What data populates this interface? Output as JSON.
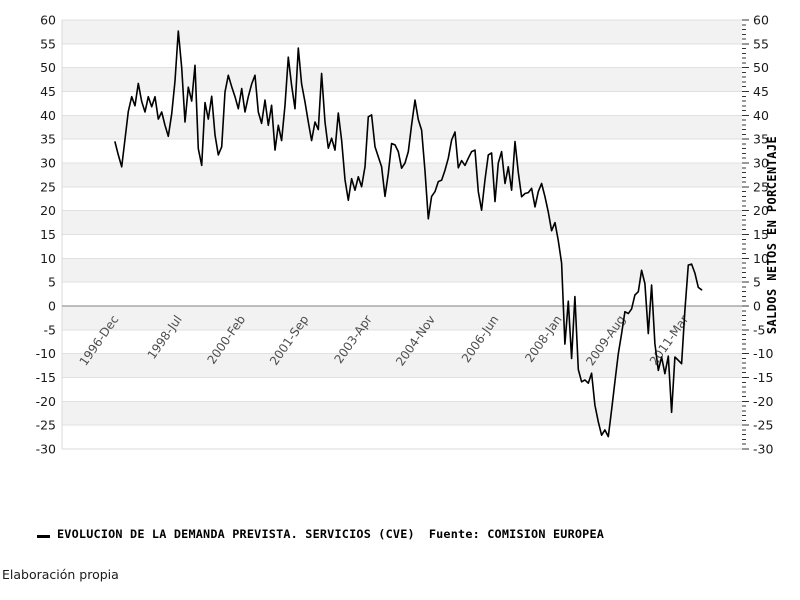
{
  "chart_data": {
    "type": "line",
    "title": "",
    "ylabel_right": "SALDOS NETOS EN PORCENTAJE",
    "ylim": [
      -30,
      60
    ],
    "y_tick_step": 5,
    "y_minor_tick_step": 1,
    "grid": "horizontal-bands",
    "legend_position": "bottom-left",
    "band_color": "#f2f2f2",
    "grid_color": "#e0e0e0",
    "zero_line_color": "#808080",
    "border_color": "#d9d9d9",
    "tick_color": "#333333",
    "line_color": "#000000",
    "y_tick_values": [
      60,
      55,
      50,
      45,
      40,
      35,
      30,
      25,
      20,
      15,
      10,
      5,
      0,
      -5,
      -10,
      -15,
      -20,
      -25,
      -30
    ],
    "x_tick_interval_months": 19,
    "x_ticks": [
      {
        "month_index": 0,
        "label": "1996-Dec"
      },
      {
        "month_index": 19,
        "label": "1998-Jul"
      },
      {
        "month_index": 38,
        "label": "2000-Feb"
      },
      {
        "month_index": 57,
        "label": "2001-Sep"
      },
      {
        "month_index": 76,
        "label": "2003-Apr"
      },
      {
        "month_index": 95,
        "label": "2004-Nov"
      },
      {
        "month_index": 114,
        "label": "2006-Jun"
      },
      {
        "month_index": 133,
        "label": "2008-Jan"
      },
      {
        "month_index": 152,
        "label": "2009-Aug"
      },
      {
        "month_index": 171,
        "label": "2011-Mar"
      }
    ],
    "series": [
      {
        "name": "EVOLUCION DE LA DEMANDA PREVISTA. SERVICIOS (CVE)",
        "start_month": "1996-Dec",
        "frequency": "monthly",
        "values": [
          34.4,
          31.7,
          29.2,
          35.0,
          40.8,
          43.9,
          42.0,
          46.7,
          42.9,
          40.7,
          43.9,
          41.8,
          43.9,
          39.2,
          40.7,
          37.9,
          35.6,
          40.3,
          47.2,
          57.7,
          50.0,
          38.6,
          45.9,
          43.0,
          50.5,
          33.0,
          29.5,
          42.7,
          39.2,
          44.0,
          35.9,
          31.7,
          33.4,
          44.9,
          48.4,
          46.0,
          43.9,
          41.4,
          45.6,
          40.7,
          43.9,
          46.6,
          48.4,
          40.7,
          38.3,
          43.2,
          37.9,
          42.1,
          32.7,
          37.9,
          34.7,
          42.1,
          52.2,
          46.3,
          41.4,
          54.1,
          46.6,
          42.8,
          38.6,
          34.7,
          38.6,
          37.0,
          48.8,
          38.6,
          33.1,
          35.2,
          32.7,
          40.5,
          34.8,
          26.5,
          22.2,
          26.7,
          24.3,
          27.1,
          25.0,
          29.2,
          39.7,
          40.1,
          33.4,
          31.3,
          29.2,
          23.0,
          27.8,
          34.1,
          33.8,
          32.4,
          28.9,
          30.0,
          32.4,
          38.0,
          43.2,
          39.1,
          36.9,
          28.3,
          18.3,
          23.0,
          24.0,
          26.1,
          26.4,
          28.5,
          31.0,
          34.8,
          36.5,
          29.0,
          30.5,
          29.5,
          31.0,
          32.4,
          32.7,
          24.0,
          20.1,
          26.5,
          31.7,
          32.1,
          21.9,
          30.0,
          32.4,
          25.7,
          29.2,
          24.3,
          34.5,
          28.0,
          22.9,
          23.6,
          23.8,
          24.7,
          20.8,
          24.0,
          25.7,
          22.9,
          19.7,
          15.8,
          17.5,
          13.7,
          9.0,
          -8.0,
          1.0,
          -11.0,
          2.0,
          -13.3,
          -15.9,
          -15.5,
          -16.2,
          -14.1,
          -20.8,
          -24.3,
          -27.1,
          -26.0,
          -27.4,
          -21.8,
          -15.9,
          -10.0,
          -5.8,
          -1.2,
          -1.6,
          -0.6,
          2.3,
          3.0,
          7.5,
          4.7,
          -5.8,
          4.4,
          -7.9,
          -13.5,
          -10.7,
          -14.2,
          -10.5,
          -22.3,
          -10.7,
          -11.4,
          -12.1,
          -0.9,
          8.6,
          8.8,
          6.9,
          3.9,
          3.4
        ]
      }
    ]
  },
  "legend": {
    "series_label": "EVOLUCION DE LA DEMANDA PREVISTA. SERVICIOS (CVE)",
    "source_label": "Fuente: COMISION EUROPEA"
  },
  "footer": {
    "credit": "Elaboración propia"
  }
}
